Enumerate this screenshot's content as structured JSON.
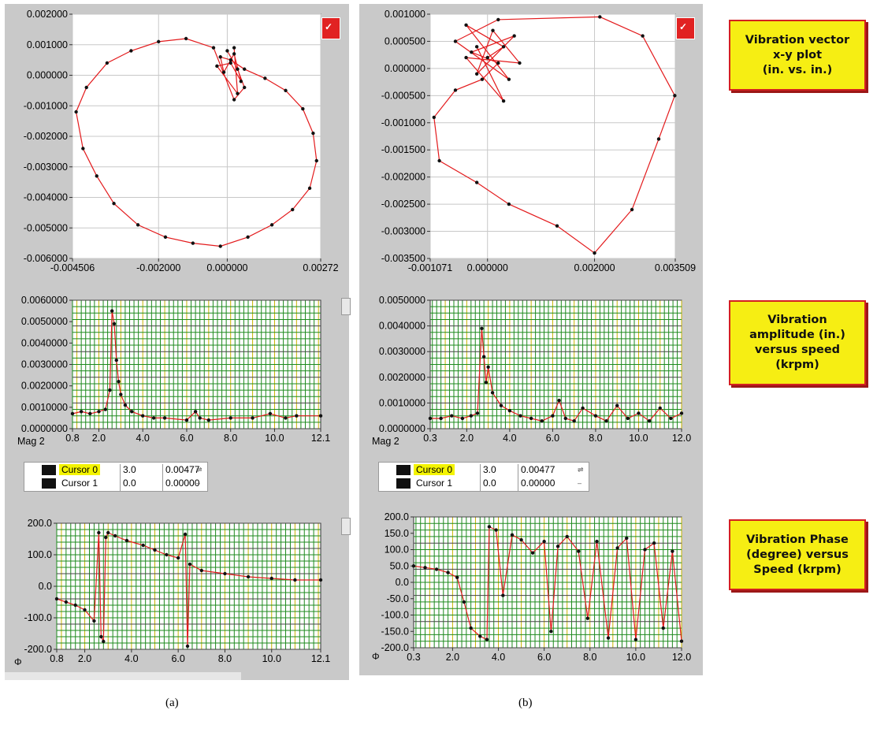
{
  "labels": {
    "a": "(a)",
    "b": "(b)"
  },
  "captions": {
    "xy": "Vibration vector\nx-y plot\n(in. vs. in.)",
    "amplitude": "Vibration\namplitude (in.)\nversus speed\n(krpm)",
    "phase": "Vibration Phase\n(degree) versus\nSpeed (krpm)"
  },
  "mag_label": "Mag 2",
  "phase_label": "Φ",
  "legend": {
    "cursor0": {
      "name": "Cursor 0",
      "x": "3.0",
      "y": "0.00477"
    },
    "cursor1": {
      "name": "Cursor 1",
      "x": "0.0",
      "y": "0.00000"
    }
  },
  "colors": {
    "panel": "#c9c9c9",
    "series": "#e31a1c",
    "points": "#111111",
    "grid_green": "#1e8a1e",
    "grid_yellow": "#c8b400",
    "caption_fill": "#f6ee13",
    "caption_border": "#d42020"
  },
  "chart_data": [
    {
      "id": "a-xy",
      "type": "scatter",
      "title": "",
      "xlabel": "",
      "ylabel": "",
      "xlim": [
        -0.004506,
        0.00272
      ],
      "ylim": [
        -0.006,
        0.002
      ],
      "xticks": [
        "-0.004506",
        "-0.002000",
        "0.000000",
        "0.00272"
      ],
      "xtick_values": [
        -0.004506,
        -0.002,
        0.0,
        0.00272
      ],
      "yticks": [
        "0.002000",
        "0.001000",
        "0.000000",
        "-0.001000",
        "-0.002000",
        "-0.003000",
        "-0.004000",
        "-0.005000",
        "-0.006000"
      ],
      "ytick_values": [
        0.002,
        0.001,
        0.0,
        -0.001,
        -0.002,
        -0.003,
        -0.004,
        -0.005,
        -0.006
      ],
      "grid": true,
      "series": [
        {
          "x": [
            0.0,
            0.0003,
            0.0005,
            0.0002,
            -0.0004,
            -0.0012,
            -0.002,
            -0.0028,
            -0.0035,
            -0.0041,
            -0.0044,
            -0.0042,
            -0.0038,
            -0.0033,
            -0.0026,
            -0.0018,
            -0.001,
            -0.0002,
            0.0006,
            0.0013,
            0.0019,
            0.0024,
            0.0026,
            0.0025,
            0.0022,
            0.0017,
            0.0011,
            0.0005,
            0.0001,
            -0.0002,
            -0.0001,
            0.0002,
            0.0004,
            0.0001,
            -0.0003,
            0.0003,
            0.0002
          ],
          "y": [
            0.0008,
            0.0002,
            -0.0004,
            -0.0008,
            0.0009,
            0.0012,
            0.0011,
            0.0008,
            0.0004,
            -0.0004,
            -0.0012,
            -0.0024,
            -0.0033,
            -0.0042,
            -0.0049,
            -0.0053,
            -0.0055,
            -0.0056,
            -0.0053,
            -0.0049,
            -0.0044,
            -0.0037,
            -0.0028,
            -0.0019,
            -0.0011,
            -0.0005,
            -0.0001,
            0.0002,
            0.0005,
            0.0006,
            0.0001,
            0.0007,
            -0.0002,
            0.0004,
            0.0003,
            -0.0006,
            0.0009
          ]
        }
      ]
    },
    {
      "id": "b-xy",
      "type": "scatter",
      "title": "",
      "xlabel": "",
      "ylabel": "",
      "xlim": [
        -0.001071,
        0.003509
      ],
      "ylim": [
        -0.0035,
        0.001
      ],
      "xticks": [
        "-0.001071",
        "0.000000",
        "0.002000",
        "0.003509"
      ],
      "xtick_values": [
        -0.001071,
        0.0,
        0.002,
        0.003509
      ],
      "yticks": [
        "0.001000",
        "0.000500",
        "0.000000",
        "-0.000500",
        "-0.001000",
        "-0.001500",
        "-0.002000",
        "-0.002500",
        "-0.003000",
        "-0.003500"
      ],
      "ytick_values": [
        0.001,
        0.0005,
        0.0,
        -0.0005,
        -0.001,
        -0.0015,
        -0.002,
        -0.0025,
        -0.003,
        -0.0035
      ],
      "grid": true,
      "series": [
        {
          "x": [
            0.0,
            0.0003,
            -0.0004,
            0.0004,
            -0.0006,
            0.0002,
            0.0021,
            0.0029,
            0.0035,
            0.0032,
            0.0027,
            0.002,
            0.0013,
            0.0004,
            -0.0002,
            -0.0009,
            -0.001,
            -0.0006,
            -0.0001,
            0.0002,
            -0.0003,
            0.0005,
            -0.0002,
            0.0001,
            0.0006,
            -0.0004,
            0.0003,
            -0.0002
          ],
          "y": [
            0.0002,
            0.0004,
            0.0008,
            -0.0002,
            0.0005,
            0.0009,
            0.00095,
            0.0006,
            -0.0005,
            -0.0013,
            -0.0026,
            -0.0034,
            -0.0029,
            -0.0025,
            -0.0021,
            -0.0017,
            -0.0009,
            -0.0004,
            -0.0002,
            0.0001,
            0.0003,
            0.0006,
            -0.0001,
            0.0007,
            0.0001,
            0.0002,
            -0.0006,
            0.0004
          ]
        }
      ]
    },
    {
      "id": "a-mag",
      "type": "line",
      "title": "",
      "xlabel": "",
      "ylabel": "",
      "xlim": [
        0.8,
        12.1
      ],
      "ylim": [
        0,
        0.006
      ],
      "xticks": [
        "0.8",
        "2.0",
        "4.0",
        "6.0",
        "8.0",
        "10.0",
        "12.1"
      ],
      "xtick_values": [
        0.8,
        2.0,
        4.0,
        6.0,
        8.0,
        10.0,
        12.1
      ],
      "yticks": [
        "0.0060000",
        "0.0050000",
        "0.0040000",
        "0.0030000",
        "0.0020000",
        "0.0010000",
        "0.0000000"
      ],
      "ytick_values": [
        0.006,
        0.005,
        0.004,
        0.003,
        0.002,
        0.001,
        0.0
      ],
      "grid": true,
      "series": [
        {
          "x": [
            0.8,
            1.2,
            1.6,
            2.0,
            2.3,
            2.5,
            2.6,
            2.7,
            2.8,
            2.9,
            3.0,
            3.2,
            3.5,
            4.0,
            4.5,
            5.0,
            6.0,
            6.4,
            6.6,
            7.0,
            8.0,
            9.0,
            9.8,
            10.5,
            11.0,
            12.1
          ],
          "y": [
            0.0007,
            0.0008,
            0.0007,
            0.0008,
            0.0009,
            0.0018,
            0.0055,
            0.0049,
            0.0032,
            0.0022,
            0.0016,
            0.0011,
            0.0008,
            0.0006,
            0.0005,
            0.0005,
            0.0004,
            0.0008,
            0.0005,
            0.0004,
            0.0005,
            0.0005,
            0.0007,
            0.0005,
            0.0006,
            0.0006
          ]
        }
      ]
    },
    {
      "id": "b-mag",
      "type": "line",
      "title": "",
      "xlabel": "",
      "ylabel": "",
      "xlim": [
        0.3,
        12.0
      ],
      "ylim": [
        0,
        0.005
      ],
      "xticks": [
        "0.3",
        "2.0",
        "4.0",
        "6.0",
        "8.0",
        "10.0",
        "12.0"
      ],
      "xtick_values": [
        0.3,
        2.0,
        4.0,
        6.0,
        8.0,
        10.0,
        12.0
      ],
      "yticks": [
        "0.0050000",
        "0.0040000",
        "0.0030000",
        "0.0020000",
        "0.0010000",
        "0.0000000"
      ],
      "ytick_values": [
        0.005,
        0.004,
        0.003,
        0.002,
        0.001,
        0.0
      ],
      "grid": true,
      "series": [
        {
          "x": [
            0.3,
            0.8,
            1.3,
            1.8,
            2.2,
            2.5,
            2.7,
            2.8,
            2.9,
            3.0,
            3.2,
            3.6,
            4.0,
            4.5,
            5.0,
            5.5,
            6.0,
            6.3,
            6.6,
            7.0,
            7.4,
            8.0,
            8.5,
            9.0,
            9.5,
            10.0,
            10.5,
            11.0,
            11.5,
            12.0
          ],
          "y": [
            0.0004,
            0.0004,
            0.0005,
            0.0004,
            0.0005,
            0.0006,
            0.0039,
            0.0028,
            0.0018,
            0.0024,
            0.0014,
            0.0009,
            0.0007,
            0.0005,
            0.0004,
            0.0003,
            0.0005,
            0.0011,
            0.0004,
            0.0003,
            0.0008,
            0.0005,
            0.0003,
            0.0009,
            0.0004,
            0.0006,
            0.0003,
            0.0008,
            0.0004,
            0.0006
          ]
        }
      ]
    },
    {
      "id": "a-phase",
      "type": "line",
      "title": "",
      "xlabel": "",
      "ylabel": "",
      "xlim": [
        0.8,
        12.1
      ],
      "ylim": [
        -200,
        200
      ],
      "xticks": [
        "0.8",
        "2.0",
        "4.0",
        "6.0",
        "8.0",
        "10.0",
        "12.1"
      ],
      "xtick_values": [
        0.8,
        2.0,
        4.0,
        6.0,
        8.0,
        10.0,
        12.1
      ],
      "yticks": [
        "200.0",
        "100.0",
        "0.0",
        "-100.0",
        "-200.0"
      ],
      "ytick_values": [
        200,
        100,
        0,
        -100,
        -200
      ],
      "grid": true,
      "series": [
        {
          "x": [
            0.8,
            1.2,
            1.6,
            2.0,
            2.4,
            2.6,
            2.7,
            2.8,
            2.9,
            3.0,
            3.3,
            3.8,
            4.5,
            5.0,
            5.5,
            6.0,
            6.3,
            6.4,
            6.5,
            7.0,
            8.0,
            9.0,
            10.0,
            11.0,
            12.1
          ],
          "y": [
            -40,
            -50,
            -60,
            -75,
            -110,
            170,
            -160,
            -175,
            155,
            170,
            160,
            145,
            130,
            115,
            100,
            90,
            165,
            -190,
            70,
            50,
            40,
            30,
            25,
            20,
            20
          ]
        }
      ]
    },
    {
      "id": "b-phase",
      "type": "line",
      "title": "",
      "xlabel": "",
      "ylabel": "",
      "xlim": [
        0.3,
        12.0
      ],
      "ylim": [
        -200,
        200
      ],
      "xticks": [
        "0.3",
        "2.0",
        "4.0",
        "6.0",
        "8.0",
        "10.0",
        "12.0"
      ],
      "xtick_values": [
        0.3,
        2.0,
        4.0,
        6.0,
        8.0,
        10.0,
        12.0
      ],
      "yticks": [
        "200.0",
        "150.0",
        "100.0",
        "50.0",
        "0.0",
        "-50.0",
        "-100.0",
        "-150.0",
        "-200.0"
      ],
      "ytick_values": [
        200,
        150,
        100,
        50,
        0,
        -50,
        -100,
        -150,
        -200
      ],
      "grid": true,
      "series": [
        {
          "x": [
            0.3,
            0.8,
            1.3,
            1.8,
            2.2,
            2.5,
            2.8,
            3.2,
            3.5,
            3.6,
            3.9,
            4.2,
            4.6,
            5.0,
            5.5,
            6.0,
            6.3,
            6.6,
            7.0,
            7.5,
            7.9,
            8.3,
            8.8,
            9.2,
            9.6,
            10.0,
            10.4,
            10.8,
            11.2,
            11.6,
            12.0
          ],
          "y": [
            50,
            45,
            40,
            30,
            15,
            -60,
            -140,
            -165,
            -175,
            170,
            160,
            -40,
            145,
            130,
            90,
            125,
            -150,
            110,
            140,
            95,
            -110,
            125,
            -170,
            105,
            135,
            -175,
            100,
            120,
            -140,
            95,
            -180
          ]
        }
      ]
    }
  ]
}
